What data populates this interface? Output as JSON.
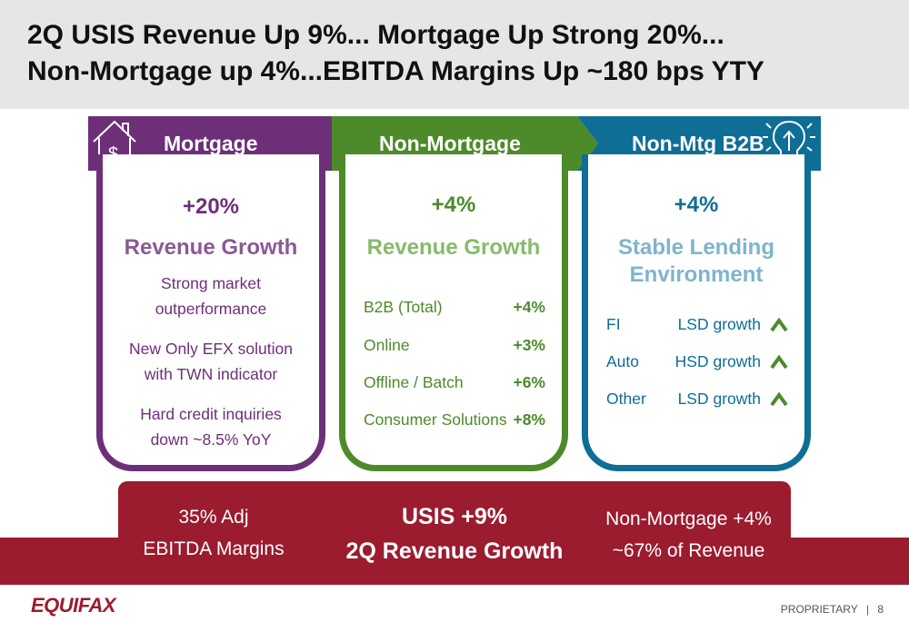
{
  "title": {
    "line1": "2Q USIS Revenue Up 9%... Mortgage Up Strong 20%...",
    "line2": "Non-Mortgage up 4%...EBITDA Margins Up ~180 bps YTY"
  },
  "colors": {
    "mortgage": "#6d2f78",
    "non_mortgage": "#4d8a2a",
    "b2b": "#0e6e95",
    "red": "#9b1b2f"
  },
  "mortgage": {
    "banner": "Mortgage",
    "icon": "house-dollar-icon",
    "pct": "+20%",
    "headline": "Revenue Growth",
    "points": [
      [
        "Strong market",
        "outperformance"
      ],
      [
        "New Only EFX solution",
        "with TWN indicator"
      ],
      [
        "Hard credit inquiries",
        "down ~8.5% YoY"
      ]
    ]
  },
  "non_mortgage": {
    "banner": "Non-Mortgage",
    "pct": "+4%",
    "headline": "Revenue Growth",
    "rows": [
      {
        "label": "B2B (Total)",
        "value": "+4%"
      },
      {
        "label": "Online",
        "value": "+3%"
      },
      {
        "label": "Offline / Batch",
        "value": "+6%"
      },
      {
        "label": "Consumer Solutions",
        "value": "+8%"
      }
    ]
  },
  "b2b": {
    "banner": "Non-Mtg B2B",
    "icon": "lightbulb-arrow-icon",
    "pct": "+4%",
    "headline": [
      "Stable Lending",
      "Environment"
    ],
    "rows": [
      {
        "label": "FI",
        "value": "LSD growth",
        "icon": "chevron-up-icon"
      },
      {
        "label": "Auto",
        "value": "HSD growth",
        "icon": "chevron-up-icon"
      },
      {
        "label": "Other",
        "value": "LSD growth",
        "icon": "chevron-up-icon"
      }
    ]
  },
  "bottom": {
    "left": [
      "35% Adj",
      "EBITDA Margins"
    ],
    "center": [
      "USIS +9%",
      "2Q Revenue Growth"
    ],
    "right": [
      "Non-Mortgage +4%",
      "~67% of Revenue"
    ]
  },
  "footer": {
    "logo": "EQUIFAX",
    "label": "PROPRIETARY",
    "page": "8"
  }
}
